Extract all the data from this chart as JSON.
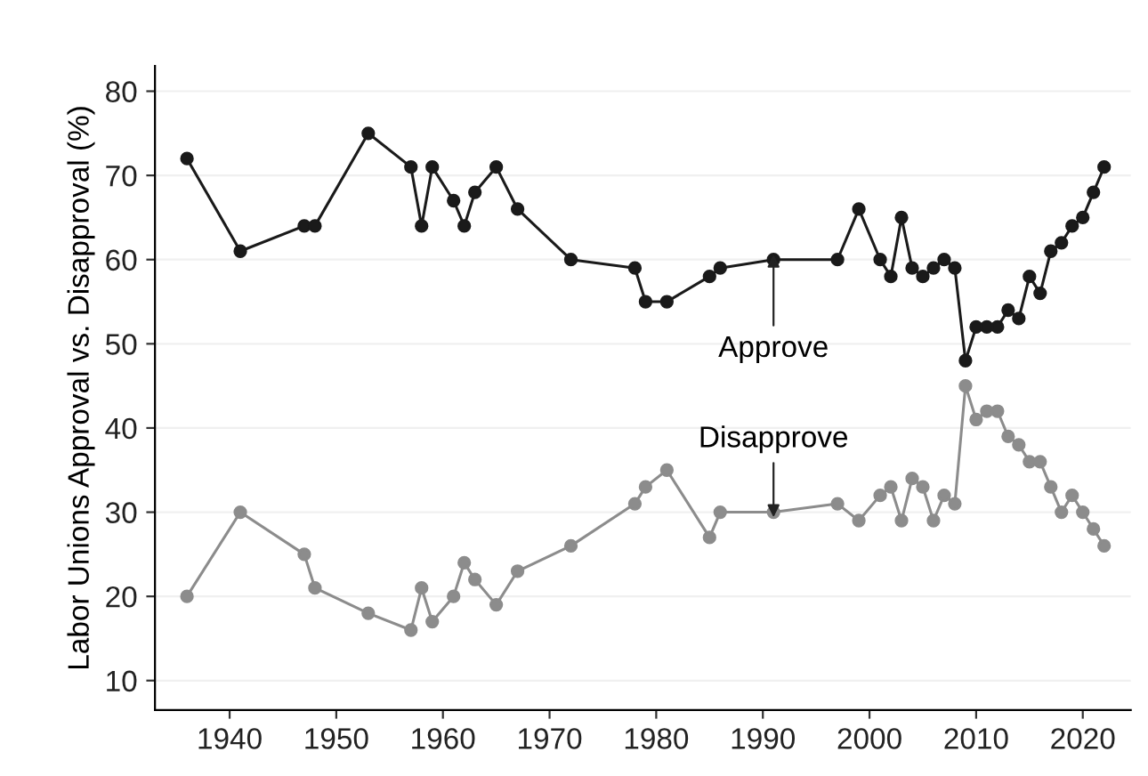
{
  "chart_data": {
    "type": "line",
    "ylabel": "Labor Unions Approval vs. Disapproval (%)",
    "x": [
      1936,
      1941,
      1947,
      1948,
      1953,
      1957,
      1958,
      1959,
      1961,
      1962,
      1963,
      1965,
      1967,
      1972,
      1978,
      1979,
      1981,
      1985,
      1986,
      1991,
      1997,
      1999,
      2001,
      2002,
      2003,
      2004,
      2005,
      2006,
      2007,
      2008,
      2009,
      2010,
      2011,
      2012,
      2013,
      2014,
      2015,
      2016,
      2017,
      2018,
      2019,
      2020,
      2021,
      2022
    ],
    "series": [
      {
        "color": "#1a1a1a",
        "values": [
          72,
          61,
          64,
          64,
          75,
          71,
          64,
          71,
          67,
          64,
          68,
          71,
          66,
          60,
          59,
          55,
          55,
          58,
          59,
          60,
          60,
          66,
          60,
          58,
          65,
          59,
          58,
          59,
          60,
          59,
          48,
          52,
          52,
          52,
          54,
          53,
          58,
          56,
          61,
          62,
          64,
          65,
          68,
          71
        ]
      },
      {
        "color": "#8c8c8c",
        "values": [
          20,
          30,
          25,
          21,
          18,
          16,
          21,
          17,
          20,
          24,
          22,
          19,
          23,
          26,
          31,
          33,
          35,
          27,
          30,
          30,
          31,
          29,
          32,
          33,
          29,
          34,
          33,
          29,
          32,
          31,
          45,
          41,
          42,
          42,
          39,
          38,
          36,
          36,
          33,
          30,
          32,
          30,
          28,
          26
        ]
      }
    ],
    "annotations": [
      {
        "text": "Approve",
        "x": 1991,
        "y": 60
      },
      {
        "text": "Disapprove",
        "x": 1991,
        "y": 30
      }
    ],
    "xlim": [
      1933,
      2024.5
    ],
    "xticks": [
      1940,
      1950,
      1960,
      1970,
      1980,
      1990,
      2000,
      2010,
      2020
    ],
    "ylim": [
      6.5,
      83
    ],
    "yticks": [
      10,
      20,
      30,
      40,
      50,
      60,
      70,
      80
    ],
    "grid": "y",
    "marker": "circle",
    "line_style": "solid",
    "legend": false
  }
}
